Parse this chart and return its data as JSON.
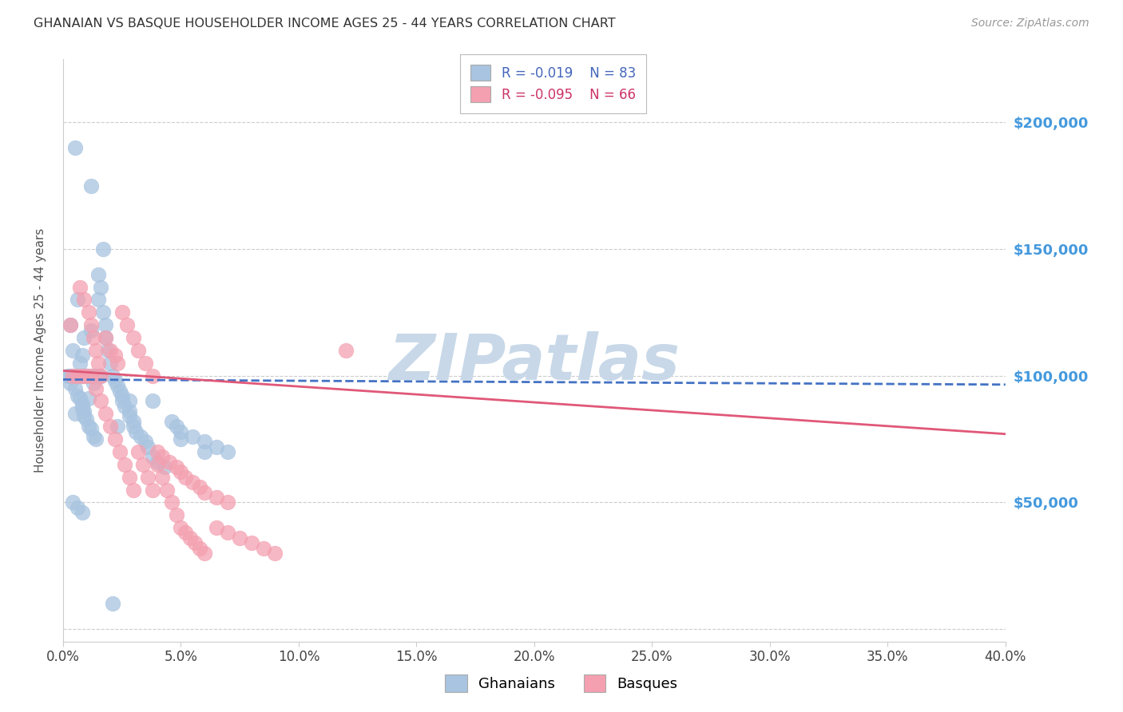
{
  "title": "GHANAIAN VS BASQUE HOUSEHOLDER INCOME AGES 25 - 44 YEARS CORRELATION CHART",
  "source": "Source: ZipAtlas.com",
  "ylabel": "Householder Income Ages 25 - 44 years",
  "xlabel_ticks": [
    "0.0%",
    "5.0%",
    "10.0%",
    "15.0%",
    "20.0%",
    "25.0%",
    "30.0%",
    "35.0%",
    "40.0%"
  ],
  "xlabel_vals": [
    0.0,
    0.05,
    0.1,
    0.15,
    0.2,
    0.25,
    0.3,
    0.35,
    0.4
  ],
  "ytick_vals": [
    0,
    50000,
    100000,
    150000,
    200000
  ],
  "right_ytick_labels": [
    "$50,000",
    "$100,000",
    "$150,000",
    "$200,000"
  ],
  "right_ytick_vals": [
    50000,
    100000,
    150000,
    200000
  ],
  "xlim": [
    0.0,
    0.4
  ],
  "ylim": [
    -5000,
    225000
  ],
  "ghanaian_color": "#a8c4e0",
  "basque_color": "#f4a0b0",
  "ghanaian_R": -0.019,
  "ghanaian_N": 83,
  "basque_R": -0.095,
  "basque_N": 66,
  "trend_ghanaian_color": "#4472c4",
  "trend_basque_color": "#e05878",
  "watermark": "ZIPatlas",
  "watermark_color": "#c8d8e8",
  "ghanaian_x": [
    0.005,
    0.012,
    0.017,
    0.002,
    0.003,
    0.003,
    0.004,
    0.005,
    0.005,
    0.006,
    0.006,
    0.007,
    0.007,
    0.008,
    0.008,
    0.008,
    0.009,
    0.009,
    0.009,
    0.01,
    0.01,
    0.011,
    0.011,
    0.012,
    0.012,
    0.013,
    0.013,
    0.014,
    0.015,
    0.015,
    0.016,
    0.016,
    0.017,
    0.018,
    0.018,
    0.019,
    0.02,
    0.021,
    0.022,
    0.023,
    0.024,
    0.025,
    0.025,
    0.026,
    0.028,
    0.028,
    0.03,
    0.03,
    0.031,
    0.033,
    0.035,
    0.036,
    0.038,
    0.038,
    0.04,
    0.043,
    0.046,
    0.048,
    0.05,
    0.055,
    0.06,
    0.065,
    0.07,
    0.003,
    0.004,
    0.006,
    0.007,
    0.008,
    0.009,
    0.01,
    0.011,
    0.012,
    0.013,
    0.014,
    0.015,
    0.023,
    0.028,
    0.05,
    0.06,
    0.021,
    0.004,
    0.006,
    0.008
  ],
  "ghanaian_y": [
    190000,
    175000,
    150000,
    100000,
    120000,
    97000,
    110000,
    95000,
    85000,
    130000,
    92000,
    91000,
    105000,
    89000,
    108000,
    87000,
    86000,
    115000,
    84000,
    83000,
    100000,
    91000,
    80000,
    79000,
    118000,
    97000,
    76000,
    75000,
    130000,
    140000,
    135000,
    100000,
    125000,
    120000,
    115000,
    110000,
    105000,
    100000,
    98000,
    96000,
    94000,
    92000,
    90000,
    88000,
    86000,
    84000,
    82000,
    80000,
    78000,
    76000,
    74000,
    72000,
    90000,
    68000,
    66000,
    64000,
    82000,
    80000,
    78000,
    76000,
    74000,
    72000,
    70000,
    100000,
    100000,
    100000,
    100000,
    100000,
    100000,
    100000,
    100000,
    100000,
    100000,
    100000,
    100000,
    80000,
    90000,
    75000,
    70000,
    10000,
    50000,
    48000,
    46000
  ],
  "basque_x": [
    0.003,
    0.007,
    0.009,
    0.011,
    0.012,
    0.013,
    0.014,
    0.015,
    0.016,
    0.018,
    0.02,
    0.022,
    0.023,
    0.025,
    0.027,
    0.03,
    0.032,
    0.035,
    0.038,
    0.04,
    0.042,
    0.045,
    0.048,
    0.05,
    0.052,
    0.055,
    0.058,
    0.06,
    0.065,
    0.07,
    0.12,
    0.004,
    0.006,
    0.008,
    0.01,
    0.012,
    0.014,
    0.016,
    0.018,
    0.02,
    0.022,
    0.024,
    0.026,
    0.028,
    0.03,
    0.032,
    0.034,
    0.036,
    0.038,
    0.04,
    0.042,
    0.044,
    0.046,
    0.048,
    0.05,
    0.052,
    0.054,
    0.056,
    0.058,
    0.06,
    0.065,
    0.07,
    0.075,
    0.08,
    0.085,
    0.09
  ],
  "basque_y": [
    120000,
    135000,
    130000,
    125000,
    120000,
    115000,
    110000,
    105000,
    100000,
    115000,
    110000,
    108000,
    105000,
    125000,
    120000,
    115000,
    110000,
    105000,
    100000,
    70000,
    68000,
    66000,
    64000,
    62000,
    60000,
    58000,
    56000,
    54000,
    52000,
    50000,
    110000,
    100000,
    100000,
    100000,
    100000,
    100000,
    95000,
    90000,
    85000,
    80000,
    75000,
    70000,
    65000,
    60000,
    55000,
    70000,
    65000,
    60000,
    55000,
    65000,
    60000,
    55000,
    50000,
    45000,
    40000,
    38000,
    36000,
    34000,
    32000,
    30000,
    40000,
    38000,
    36000,
    34000,
    32000,
    30000
  ],
  "trend_g_x0": 0.0,
  "trend_g_x1": 0.4,
  "trend_g_y0": 98500,
  "trend_g_y1": 96500,
  "trend_b_x0": 0.0,
  "trend_b_x1": 0.4,
  "trend_b_y0": 102000,
  "trend_b_y1": 77000
}
